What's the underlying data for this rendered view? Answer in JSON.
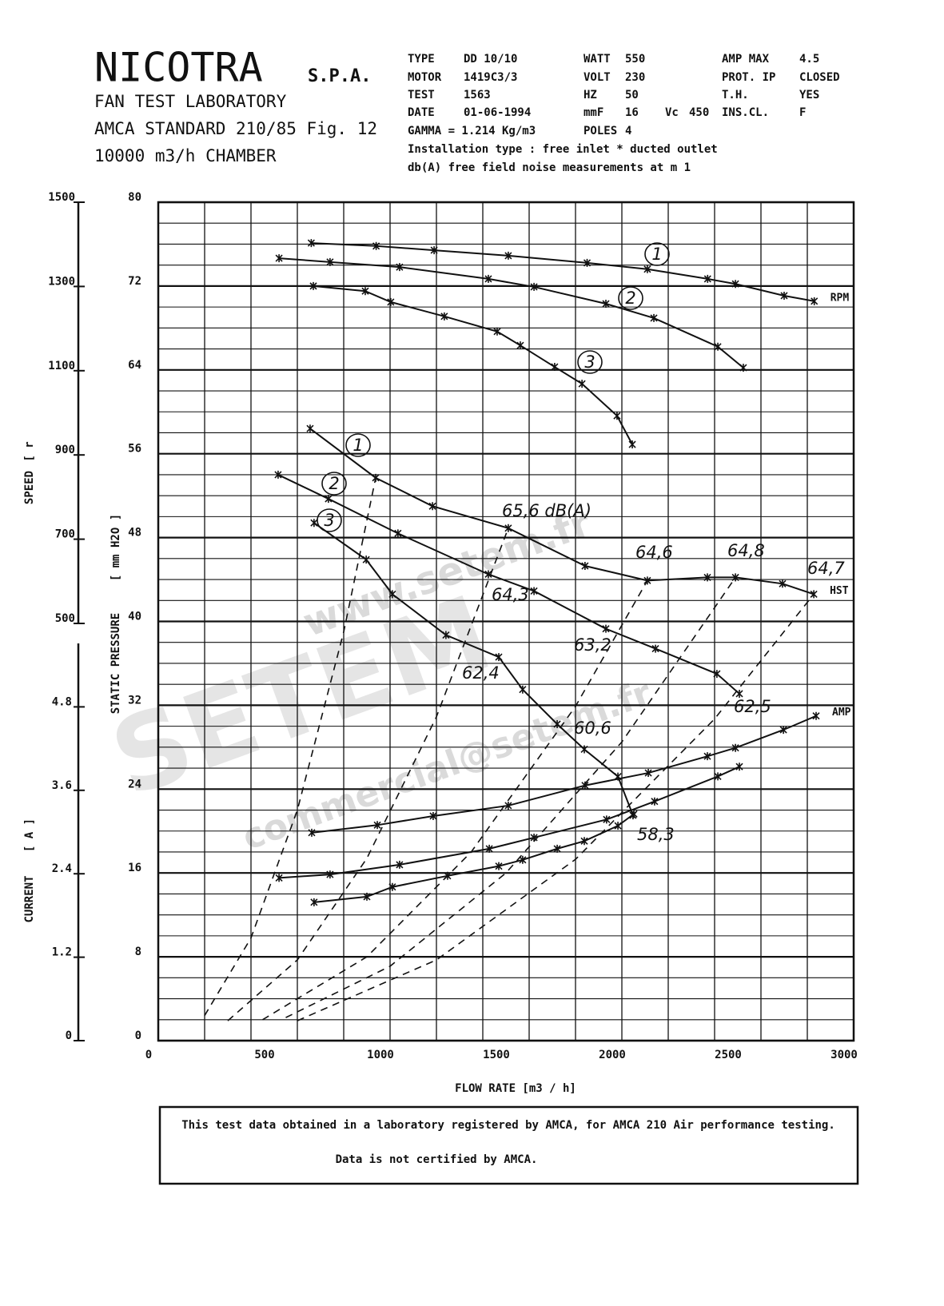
{
  "header": {
    "brand": "NICOTRA",
    "suffix": "S.P.A.",
    "lines": [
      "FAN TEST LABORATORY",
      "AMCA STANDARD 210/85 Fig. 12",
      "10000 m3/h  CHAMBER"
    ]
  },
  "specs": [
    {
      "label": "TYPE",
      "value": "DD 10/10"
    },
    {
      "label": "MOTOR",
      "value": "1419C3/3"
    },
    {
      "label": "TEST",
      "value": "1563"
    },
    {
      "label": "DATE",
      "value": "01-06-1994"
    },
    {
      "label": "WATT",
      "value": "550"
    },
    {
      "label": "VOLT",
      "value": "230"
    },
    {
      "label": "HZ",
      "value": "50"
    },
    {
      "label": "mmF",
      "value": "16"
    },
    {
      "label": "Vc",
      "value": "450"
    },
    {
      "label": "POLES",
      "value": "4"
    },
    {
      "label": "AMP MAX",
      "value": "4.5"
    },
    {
      "label": "PROT.  IP",
      "value": "CLOSED"
    },
    {
      "label": "T.H.",
      "value": "YES"
    },
    {
      "label": "INS.CL.",
      "value": "F"
    }
  ],
  "gamma": "GAMMA = 1.214 Kg/m3",
  "notes": [
    "Installation type : free inlet * ducted outlet",
    "db(A)  free field noise measurements at m  1"
  ],
  "chart_data": {
    "type": "line",
    "x_label": "FLOW RATE   [m3 / h]",
    "y_label": "STATIC PRESSURE",
    "y_unit": "[ mm H2O ]",
    "y2_label": "SPEED",
    "y2_unit": "[ r",
    "y3_label": "CURRENT",
    "y3_unit": "[ A ]",
    "xlim": [
      0,
      3000
    ],
    "xticks": [
      0,
      500,
      1000,
      1500,
      2000,
      2500,
      3000
    ],
    "xminorticks": [
      0,
      200,
      400,
      600,
      800,
      1000,
      1200,
      1400,
      1600,
      1800,
      2000,
      2200,
      2400,
      2600,
      2800,
      3000
    ],
    "ylim": [
      0,
      80
    ],
    "yticks": [
      0,
      8,
      16,
      24,
      32,
      40,
      48,
      56,
      64,
      72,
      80
    ],
    "yminorticks": [
      0,
      2,
      4,
      6,
      8,
      10,
      12,
      14,
      16,
      18,
      20,
      22,
      24,
      26,
      28,
      30,
      32,
      34,
      36,
      38,
      40,
      42,
      44,
      46,
      48,
      50,
      52,
      54,
      56,
      58,
      60,
      62,
      64,
      66,
      68,
      70,
      72,
      74,
      76,
      78,
      80
    ],
    "y2lim": [
      500,
      1500
    ],
    "y2ticks": [
      500,
      700,
      900,
      1100,
      1300,
      1500
    ],
    "y3lim": [
      0,
      6
    ],
    "y3ticks": [
      0,
      1.2,
      2.4,
      3.6,
      4.8
    ],
    "grid": true,
    "series": [
      {
        "name": "1",
        "axis": "y2",
        "color": "#111111",
        "end_label": "RPM",
        "x": [
          660,
          940,
          1190,
          1510,
          1850,
          2110,
          2370,
          2490,
          2700,
          2830
        ],
        "values": [
          1403,
          1396,
          1386,
          1373,
          1356,
          1341,
          1318,
          1306,
          1278,
          1265
        ]
      },
      {
        "name": "2",
        "axis": "y2",
        "color": "#111111",
        "x": [
          521,
          741,
          1041,
          1424,
          1621,
          1931,
          2138,
          2414,
          2524
        ],
        "values": [
          1367,
          1358,
          1346,
          1318,
          1299,
          1259,
          1225,
          1157,
          1107
        ]
      },
      {
        "name": "3",
        "axis": "y2",
        "color": "#111111",
        "x": [
          669,
          893,
          1003,
          1234,
          1462,
          1562,
          1710,
          1828,
          1979,
          2045
        ],
        "values": [
          1301,
          1289,
          1263,
          1229,
          1193,
          1160,
          1109,
          1069,
          993,
          925
        ]
      },
      {
        "name": "1",
        "axis": "y",
        "color": "#111111",
        "end_label": "HST",
        "x": [
          655,
          938,
          1183,
          1510,
          1841,
          2110,
          2369,
          2490,
          2693,
          2828
        ],
        "values": [
          58.4,
          53.7,
          51.0,
          48.9,
          45.3,
          43.9,
          44.2,
          44.2,
          43.6,
          42.6
        ]
      },
      {
        "name": "2",
        "axis": "y",
        "color": "#111111",
        "x": [
          517,
          734,
          1034,
          1424,
          1621,
          1931,
          2145,
          2410,
          2507
        ],
        "values": [
          54.0,
          51.7,
          48.4,
          44.5,
          42.9,
          39.3,
          37.4,
          35.0,
          33.1
        ]
      },
      {
        "name": "3",
        "axis": "y",
        "color": "#111111",
        "x": [
          672,
          897,
          1010,
          1241,
          1469,
          1572,
          1721,
          1838,
          1983,
          2048
        ],
        "values": [
          49.4,
          45.9,
          42.6,
          38.7,
          36.6,
          33.5,
          30.2,
          27.8,
          25.2,
          21.5
        ]
      },
      {
        "axis": "y3",
        "color": "#111111",
        "end_label": "AMP",
        "x": [
          662,
          945,
          1186,
          1510,
          1841,
          2114,
          2369,
          2490,
          2697,
          2838
        ],
        "values": [
          2.99,
          3.1,
          3.23,
          3.38,
          3.67,
          3.85,
          4.09,
          4.21,
          4.47,
          4.67
        ]
      },
      {
        "axis": "y3",
        "color": "#111111",
        "x": [
          521,
          741,
          1041,
          1428,
          1621,
          1934,
          2141,
          2414,
          2507
        ],
        "values": [
          2.34,
          2.39,
          2.53,
          2.76,
          2.92,
          3.18,
          3.44,
          3.8,
          3.94
        ]
      },
      {
        "axis": "y3",
        "color": "#111111",
        "x": [
          672,
          900,
          1010,
          1248,
          1469,
          1572,
          1721,
          1838,
          1983,
          2052
        ],
        "values": [
          1.99,
          2.07,
          2.21,
          2.37,
          2.51,
          2.6,
          2.76,
          2.87,
          3.09,
          3.26
        ]
      },
      {
        "axis": "y",
        "color": "#111111",
        "dash": true,
        "x": [
          200,
          400,
          600,
          800,
          938
        ],
        "values": [
          2.4,
          9.8,
          22.0,
          39.0,
          53.7
        ]
      },
      {
        "axis": "y",
        "color": "#111111",
        "dash": true,
        "x": [
          300,
          600,
          900,
          1200,
          1510
        ],
        "values": [
          1.9,
          7.7,
          17.4,
          30.9,
          48.9
        ]
      },
      {
        "axis": "y",
        "color": "#111111",
        "dash": true,
        "x": [
          450,
          900,
          1350,
          1800,
          2110
        ],
        "values": [
          2.0,
          8.0,
          18.0,
          31.9,
          43.9
        ]
      },
      {
        "axis": "y",
        "color": "#111111",
        "dash": true,
        "x": [
          550,
          1000,
          1500,
          2000,
          2490
        ],
        "values": [
          2.2,
          7.1,
          16.0,
          28.5,
          44.2
        ]
      },
      {
        "axis": "y",
        "color": "#111111",
        "dash": true,
        "x": [
          600,
          1200,
          1800,
          2400,
          2828
        ],
        "values": [
          1.9,
          7.7,
          17.3,
          30.7,
          42.6
        ]
      }
    ],
    "annotations": [
      "65,6 dB(A)",
      "64,6",
      "64,8",
      "64,7",
      "64,3",
      "63,2",
      "62,4",
      "60,6",
      "62,5",
      "58,3"
    ]
  },
  "watermark": [
    "www.setem.fr",
    "SETEM",
    "commercial@setem.fr"
  ],
  "footer": [
    "This test data obtained in a laboratory registered by AMCA, for AMCA 210 Air performance testing.",
    "Data is not certified by AMCA."
  ]
}
